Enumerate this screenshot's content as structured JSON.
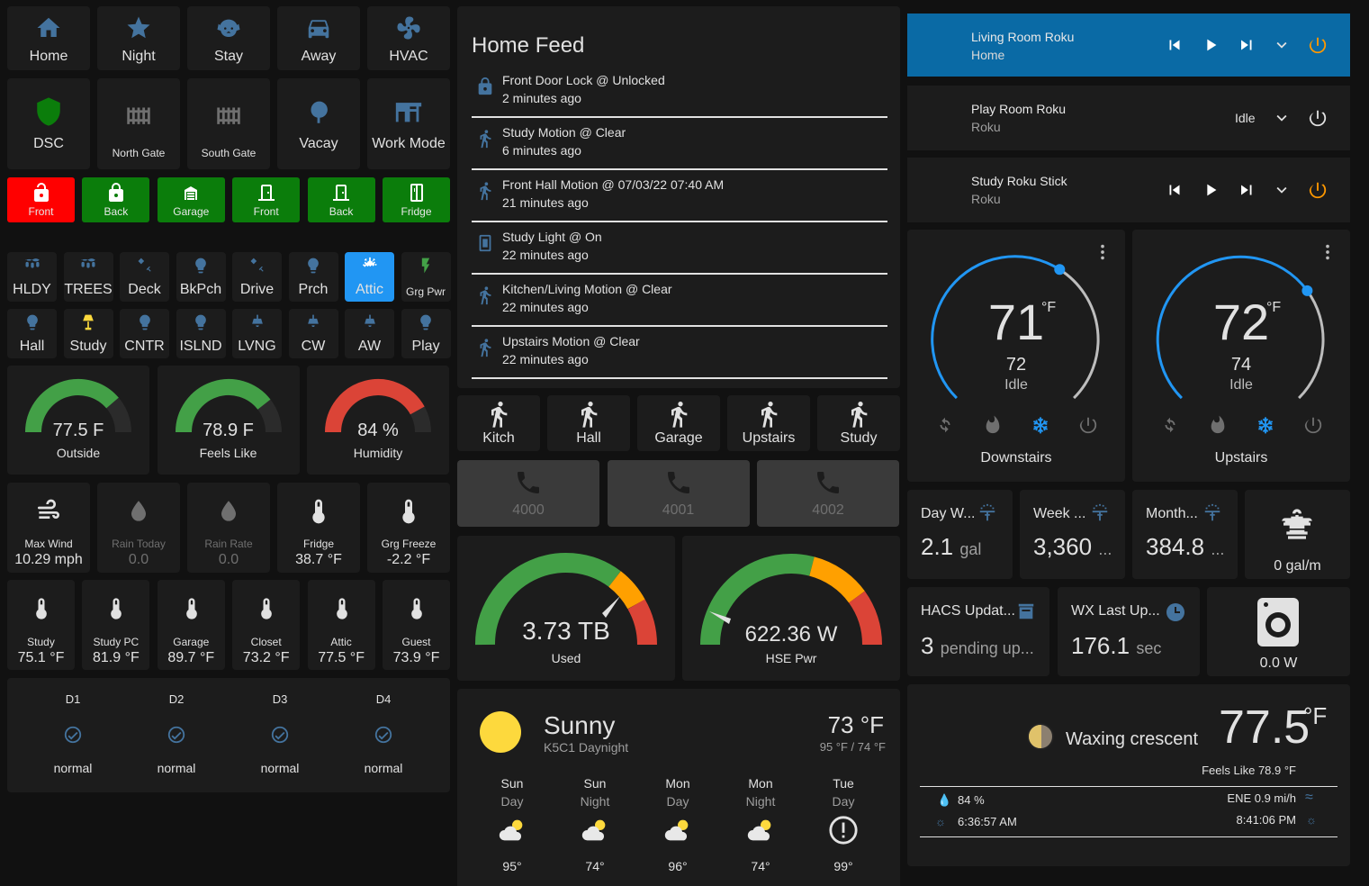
{
  "scenes": [
    {
      "label": "Home",
      "icon": "home-icon"
    },
    {
      "label": "Night",
      "icon": "star-icon"
    },
    {
      "label": "Stay",
      "icon": "dog-icon"
    },
    {
      "label": "Away",
      "icon": "car-icon"
    },
    {
      "label": "HVAC",
      "icon": "fan-icon"
    }
  ],
  "row2": [
    {
      "label": "DSC",
      "icon": "shield-icon"
    },
    {
      "label": "North Gate",
      "icon": "gate-icon"
    },
    {
      "label": "South Gate",
      "icon": "gate-icon"
    },
    {
      "label": "Vacay",
      "icon": "tree-icon"
    },
    {
      "label": "Work Mode",
      "icon": "desk-icon"
    }
  ],
  "locks": [
    {
      "label": "Front",
      "color": "#ff0000",
      "icon": "lock-open-icon"
    },
    {
      "label": "Back",
      "color": "#0b7d0b",
      "icon": "lock-icon"
    },
    {
      "label": "Garage",
      "color": "#0b7d0b",
      "icon": "garage-icon"
    },
    {
      "label": "Front",
      "color": "#0b7d0b",
      "icon": "door-icon"
    },
    {
      "label": "Back",
      "color": "#0b7d0b",
      "icon": "door-icon"
    },
    {
      "label": "Fridge",
      "color": "#0b7d0b",
      "icon": "fridge-icon"
    }
  ],
  "lights1": [
    {
      "label": "HLDY",
      "icon": "string-lights-icon"
    },
    {
      "label": "TREES",
      "icon": "string-lights-icon"
    },
    {
      "label": "Deck",
      "icon": "spotlight-icon"
    },
    {
      "label": "BkPch",
      "icon": "bulb-icon"
    },
    {
      "label": "Drive",
      "icon": "spotlight-icon"
    },
    {
      "label": "Prch",
      "icon": "bulb-icon"
    },
    {
      "label": "Attic",
      "icon": "ac-icon"
    },
    {
      "label": "Grg Pwr",
      "icon": "flash-icon"
    }
  ],
  "lights2": [
    {
      "label": "Hall",
      "icon": "bulb-icon"
    },
    {
      "label": "Study",
      "icon": "lamp-icon"
    },
    {
      "label": "CNTR",
      "icon": "bulb-icon"
    },
    {
      "label": "ISLND",
      "icon": "bulb-icon"
    },
    {
      "label": "LVNG",
      "icon": "ceiling-light-icon"
    },
    {
      "label": "CW",
      "icon": "ceiling-light-icon"
    },
    {
      "label": "AW",
      "icon": "ceiling-light-icon"
    },
    {
      "label": "Play",
      "icon": "bulb-icon"
    }
  ],
  "gauges": [
    {
      "value": "77.5 F",
      "name": "Outside",
      "pct": 0.775,
      "color": "#43a047"
    },
    {
      "value": "78.9 F",
      "name": "Feels Like",
      "pct": 0.789,
      "color": "#43a047"
    },
    {
      "value": "84 %",
      "name": "Humidity",
      "pct": 0.84,
      "color": "#db4437"
    }
  ],
  "weather_small": [
    {
      "name": "Max Wind",
      "value": "10.29 mph",
      "icon": "wind-icon",
      "dim": false
    },
    {
      "name": "Rain Today",
      "value": "0.0",
      "icon": "drop-icon",
      "dim": true
    },
    {
      "name": "Rain Rate",
      "value": "0.0",
      "icon": "drop-icon",
      "dim": true
    },
    {
      "name": "Fridge",
      "value": "38.7 °F",
      "icon": "thermometer-icon",
      "dim": false
    },
    {
      "name": "Grg Freeze",
      "value": "-2.2 °F",
      "icon": "thermometer-icon",
      "dim": false
    }
  ],
  "temps": [
    {
      "name": "Study",
      "value": "75.1 °F"
    },
    {
      "name": "Study PC",
      "value": "81.9 °F"
    },
    {
      "name": "Garage",
      "value": "89.7 °F"
    },
    {
      "name": "Closet",
      "value": "73.2 °F"
    },
    {
      "name": "Attic",
      "value": "77.5 °F"
    },
    {
      "name": "Guest",
      "value": "73.9 °F"
    }
  ],
  "drives": [
    {
      "name": "D1",
      "state": "normal"
    },
    {
      "name": "D2",
      "state": "normal"
    },
    {
      "name": "D3",
      "state": "normal"
    },
    {
      "name": "D4",
      "state": "normal"
    }
  ],
  "feed": {
    "title": "Home Feed",
    "items": [
      {
        "title": "Front Door Lock @ Unlocked",
        "time": "2 minutes ago",
        "icon": "lock-icon"
      },
      {
        "title": "Study Motion @ Clear",
        "time": "6 minutes ago",
        "icon": "motion-icon"
      },
      {
        "title": "Front Hall Motion @ 07/03/22 07:40 AM",
        "time": "21 minutes ago",
        "icon": "motion-icon"
      },
      {
        "title": "Study Light @ On",
        "time": "22 minutes ago",
        "icon": "switch-icon"
      },
      {
        "title": "Kitchen/Living Motion @ Clear",
        "time": "22 minutes ago",
        "icon": "motion-icon"
      },
      {
        "title": "Upstairs Motion @ Clear",
        "time": "22 minutes ago",
        "icon": "motion-icon"
      }
    ]
  },
  "motion": [
    {
      "label": "Kitch"
    },
    {
      "label": "Hall"
    },
    {
      "label": "Garage"
    },
    {
      "label": "Upstairs"
    },
    {
      "label": "Study"
    }
  ],
  "phones": [
    {
      "label": "4000"
    },
    {
      "label": "4001"
    },
    {
      "label": "4002"
    }
  ],
  "storage": {
    "value": "3.73 TB",
    "name": "Used"
  },
  "power": {
    "value": "622.36 W",
    "name": "HSE Pwr"
  },
  "forecast": {
    "condition": "Sunny",
    "station": "K5C1 Daynight",
    "temp": "73 °F",
    "hilo": "95 °F / 74 °F",
    "days": [
      {
        "day": "Sun",
        "part": "Day",
        "temp": "95°",
        "icon": "partly-cloudy-icon"
      },
      {
        "day": "Sun",
        "part": "Night",
        "temp": "74°",
        "icon": "partly-cloudy-icon"
      },
      {
        "day": "Mon",
        "part": "Day",
        "temp": "96°",
        "icon": "partly-cloudy-icon"
      },
      {
        "day": "Mon",
        "part": "Night",
        "temp": "74°",
        "icon": "partly-cloudy-icon"
      },
      {
        "day": "Tue",
        "part": "Day",
        "temp": "99°",
        "icon": "alert-icon"
      }
    ]
  },
  "media": [
    {
      "name": "Living Room Roku",
      "sub": "Home",
      "state": "",
      "controls": true
    },
    {
      "name": "Play Room Roku",
      "sub": "Roku",
      "state": "Idle",
      "controls": false
    },
    {
      "name": "Study Roku Stick",
      "sub": "Roku",
      "state": "",
      "controls": true
    }
  ],
  "thermostats": [
    {
      "temp": "71",
      "unit": "°F",
      "target": "72",
      "state": "Idle",
      "name": "Downstairs",
      "pos": 0.62
    },
    {
      "temp": "72",
      "unit": "°F",
      "target": "74",
      "state": "Idle",
      "name": "Upstairs",
      "pos": 0.7
    }
  ],
  "water": [
    {
      "name": "Day W...",
      "value": "2.1",
      "unit": "gal"
    },
    {
      "name": "Week ...",
      "value": "3,360",
      "unit": "..."
    },
    {
      "name": "Month...",
      "value": "384.8",
      "unit": "..."
    }
  ],
  "flow": {
    "value": "0 gal/m"
  },
  "hacs": {
    "name": "HACS Updat...",
    "value": "3",
    "unit": "pending up..."
  },
  "wx": {
    "name": "WX Last Up...",
    "value": "176.1",
    "unit": "sec"
  },
  "washer": {
    "value": "0.0 W"
  },
  "moon": {
    "phase": "Waxing crescent",
    "temp": "77.5",
    "unit": "°F",
    "feels": "Feels Like 78.9 °F",
    "humidity": "84 %",
    "wind": "ENE 0.9 mi/h",
    "sunrise": "6:36:57 AM",
    "sunset": "8:41:06 PM"
  },
  "colors": {
    "accent": "#44739e",
    "blue": "#2196f3",
    "green": "#43a047",
    "red": "#db4437",
    "orange": "#ff9800"
  }
}
